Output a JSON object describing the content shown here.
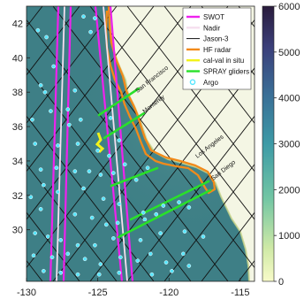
{
  "map": {
    "xaxis": {
      "ticks": [
        -130,
        -125,
        -120,
        -115
      ],
      "range": [
        -130,
        -114
      ]
    },
    "yaxis": {
      "ticks": [
        30,
        32,
        34,
        36,
        38,
        40,
        42
      ],
      "range": [
        27,
        43
      ]
    },
    "ocean_color": "#3e7f86",
    "land_color": "#f4f6e4",
    "places": [
      {
        "name": "San Francisco",
        "lon": -122.4,
        "lat": 37.8,
        "angle": -38
      },
      {
        "name": "Monterey",
        "lon": -121.9,
        "lat": 36.6,
        "angle": -38
      },
      {
        "name": "Los Angeles",
        "lon": -118.2,
        "lat": 34.0,
        "angle": -38
      },
      {
        "name": "San Diego",
        "lon": -117.1,
        "lat": 32.7,
        "angle": -38
      }
    ]
  },
  "legend": {
    "position": "top-right",
    "items": [
      {
        "label": "SWOT",
        "color": "#ee22ee",
        "kind": "line"
      },
      {
        "label": "Nadir",
        "color": "#f6dfef",
        "kind": "line"
      },
      {
        "label": "Jason-3",
        "color": "#111111",
        "kind": "line"
      },
      {
        "label": "HF radar",
        "color": "#f28a1a",
        "kind": "line"
      },
      {
        "label": "cal-val in situ",
        "color": "#f2f21a",
        "kind": "line"
      },
      {
        "label": "SPRAY gliders",
        "color": "#2ae02a",
        "kind": "line"
      },
      {
        "label": "Argo",
        "color": "#55e6ff",
        "kind": "circle"
      }
    ]
  },
  "colorbar": {
    "ticks": [
      0,
      1000,
      2000,
      3000,
      4000,
      5000,
      6000
    ],
    "range": [
      0,
      6000
    ]
  },
  "argo_floats": [
    [
      -129.2,
      41.6
    ],
    [
      -128.6,
      41.2
    ],
    [
      -126.0,
      42.4
    ],
    [
      -125.2,
      42.3
    ],
    [
      -125.5,
      41.5
    ],
    [
      -128.1,
      39.5
    ],
    [
      -129.0,
      38.4
    ],
    [
      -128.7,
      38.0
    ],
    [
      -126.6,
      38.1
    ],
    [
      -128.3,
      36.9
    ],
    [
      -127.1,
      37.0
    ],
    [
      -129.6,
      36.4
    ],
    [
      -127.0,
      36.1
    ],
    [
      -126.2,
      36.4
    ],
    [
      -129.4,
      35.0
    ],
    [
      -127.8,
      34.9
    ],
    [
      -126.4,
      35.0
    ],
    [
      -125.0,
      34.6
    ],
    [
      -124.2,
      34.3
    ],
    [
      -129.0,
      33.5
    ],
    [
      -127.9,
      33.6
    ],
    [
      -126.6,
      33.4
    ],
    [
      -125.6,
      33.4
    ],
    [
      -124.8,
      33.2
    ],
    [
      -123.9,
      33.3
    ],
    [
      -128.8,
      32.6
    ],
    [
      -127.8,
      32.2
    ],
    [
      -126.0,
      32.4
    ],
    [
      -124.6,
      31.8
    ],
    [
      -123.5,
      31.5
    ],
    [
      -129.7,
      31.9
    ],
    [
      -129.0,
      31.2
    ],
    [
      -126.6,
      30.9
    ],
    [
      -125.4,
      30.7
    ],
    [
      -124.4,
      30.3
    ],
    [
      -123.6,
      30.4
    ],
    [
      -121.7,
      30.6
    ],
    [
      -120.4,
      31.4
    ],
    [
      -119.3,
      31.6
    ],
    [
      -118.6,
      31.3
    ],
    [
      -129.4,
      29.8
    ],
    [
      -128.5,
      29.6
    ],
    [
      -127.6,
      29.4
    ],
    [
      -126.4,
      29.1
    ],
    [
      -125.2,
      29.1
    ],
    [
      -123.9,
      29.5
    ],
    [
      -122.0,
      29.4
    ],
    [
      -120.6,
      29.8
    ],
    [
      -118.9,
      29.9
    ],
    [
      -117.6,
      29.6
    ],
    [
      -129.5,
      28.5
    ],
    [
      -128.2,
      28.4
    ],
    [
      -127.1,
      28.6
    ],
    [
      -125.9,
      28.3
    ],
    [
      -124.8,
      28.0
    ],
    [
      -123.4,
      28.4
    ],
    [
      -122.2,
      28.2
    ],
    [
      -121.3,
      28.6
    ],
    [
      -120.2,
      28.1
    ],
    [
      -119.0,
      28.6
    ],
    [
      -128.8,
      27.6
    ],
    [
      -127.6,
      27.5
    ],
    [
      -126.4,
      27.4
    ],
    [
      -124.9,
      27.4
    ],
    [
      -123.5,
      27.5
    ],
    [
      -121.2,
      27.4
    ],
    [
      -119.8,
      27.6
    ],
    [
      -118.6,
      27.9
    ],
    [
      -121.8,
      31.0
    ],
    [
      -120.9,
      30.9
    ],
    [
      -123.1,
      33.8
    ],
    [
      -121.5,
      33.6
    ],
    [
      -122.3,
      32.9
    ],
    [
      -124.1,
      36.5
    ],
    [
      -123.5,
      35.2
    ]
  ]
}
